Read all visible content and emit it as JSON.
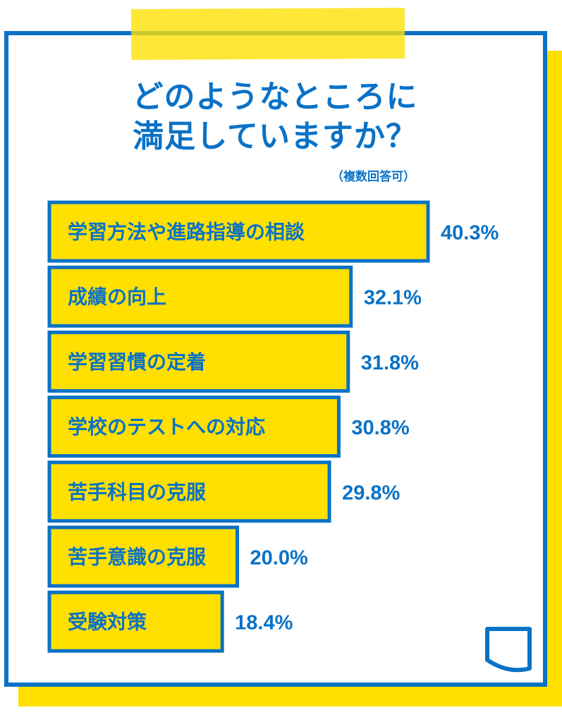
{
  "title": {
    "line1": "どのようなところに",
    "line2": "満足していますか？"
  },
  "note": "（複数回答可）",
  "colors": {
    "accent_blue": "#0A72C6",
    "accent_yellow": "#FFE000",
    "background": "#ffffff"
  },
  "chart_data": {
    "type": "bar",
    "orientation": "horizontal",
    "categories": [
      "学習方法や進路指導の相談",
      "成績の向上",
      "学習習慣の定着",
      "学校のテストへの対応",
      "苦手科目の克服",
      "苦手意識の克服",
      "受験対策"
    ],
    "values": [
      40.3,
      32.1,
      31.8,
      30.8,
      29.8,
      20.0,
      18.4
    ],
    "value_labels": [
      "40.3%",
      "32.1%",
      "31.8%",
      "30.8%",
      "29.8%",
      "20.0%",
      "18.4%"
    ],
    "unit": "%",
    "title": "どのようなところに満足していますか？",
    "xlabel": "",
    "ylabel": "",
    "xlim": [
      0,
      40.3
    ],
    "grid": false,
    "legend": "none"
  }
}
